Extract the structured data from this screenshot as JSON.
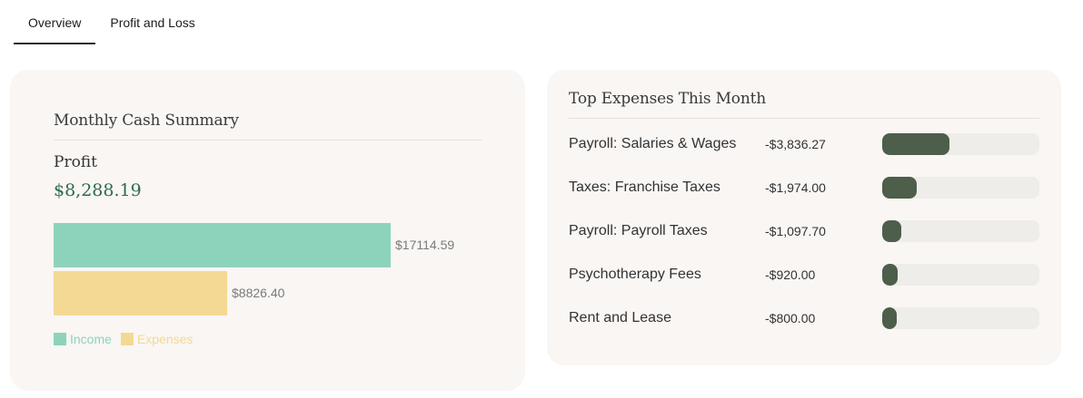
{
  "tabs": [
    {
      "label": "Overview",
      "active": true
    },
    {
      "label": "Profit and Loss",
      "active": false
    }
  ],
  "cash_summary": {
    "title": "Monthly Cash Summary",
    "profit_label": "Profit",
    "profit_value": "$8,288.19",
    "income_label": "$17114.59",
    "expenses_label": "$8826.40",
    "legend": [
      {
        "label": "Income",
        "color": "#8dd3bb"
      },
      {
        "label": "Expenses",
        "color": "#f3d993"
      }
    ],
    "chart_data": {
      "type": "bar",
      "categories": [
        "Income",
        "Expenses"
      ],
      "values": [
        17114.59,
        8826.4
      ]
    }
  },
  "top_expenses": {
    "title": "Top Expenses This Month",
    "bar_color": "#4d5e4b",
    "track_color": "#eeede9",
    "items": [
      {
        "name": "Payroll: Salaries & Wages",
        "amount": "-$3,836.27",
        "share": 0.43
      },
      {
        "name": "Taxes: Franchise Taxes",
        "amount": "-$1,974.00",
        "share": 0.22
      },
      {
        "name": "Payroll: Payroll Taxes",
        "amount": "-$1,097.70",
        "share": 0.12
      },
      {
        "name": "Psychotherapy Fees",
        "amount": "-$920.00",
        "share": 0.1
      },
      {
        "name": "Rent and Lease",
        "amount": "-$800.00",
        "share": 0.09
      }
    ]
  }
}
